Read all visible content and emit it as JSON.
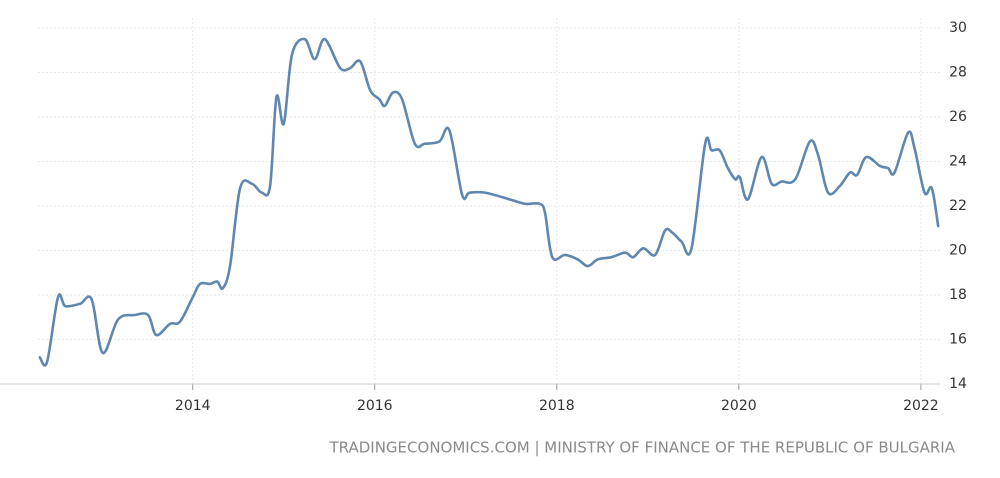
{
  "chart_data": {
    "type": "line",
    "source": "TRADINGECONOMICS.COM | MINISTRY OF FINANCE OF THE REPUBLIC OF BULGARIA",
    "x": [
      2012.32,
      2012.4,
      2012.52,
      2012.6,
      2012.76,
      2012.89,
      2013.01,
      2013.18,
      2013.36,
      2013.51,
      2013.6,
      2013.75,
      2013.86,
      2014.0,
      2014.08,
      2014.19,
      2014.27,
      2014.33,
      2014.41,
      2014.52,
      2014.65,
      2014.76,
      2014.85,
      2014.92,
      2015.0,
      2015.09,
      2015.23,
      2015.34,
      2015.45,
      2015.62,
      2015.73,
      2015.84,
      2015.95,
      2016.05,
      2016.11,
      2016.2,
      2016.3,
      2016.44,
      2016.55,
      2016.71,
      2016.82,
      2016.96,
      2017.04,
      2017.21,
      2017.48,
      2017.65,
      2017.81,
      2017.87,
      2017.95,
      2018.09,
      2018.23,
      2018.34,
      2018.45,
      2018.6,
      2018.75,
      2018.84,
      2018.95,
      2019.08,
      2019.19,
      2019.27,
      2019.37,
      2019.48,
      2019.63,
      2019.7,
      2019.79,
      2019.88,
      2019.96,
      2020.01,
      2020.1,
      2020.25,
      2020.36,
      2020.47,
      2020.62,
      2020.78,
      2020.87,
      2020.98,
      2021.11,
      2021.22,
      2021.3,
      2021.4,
      2021.55,
      2021.64,
      2021.71,
      2021.86,
      2021.93,
      2022.04,
      2022.12,
      2022.19
    ],
    "series": [
      {
        "color": "#5f87b0",
        "values": [
          15.2,
          15.0,
          17.9,
          17.5,
          17.6,
          17.8,
          15.4,
          16.9,
          17.1,
          17.1,
          16.2,
          16.7,
          16.8,
          17.9,
          18.5,
          18.5,
          18.6,
          18.3,
          19.3,
          22.8,
          23.0,
          22.6,
          22.9,
          26.9,
          25.7,
          28.8,
          29.5,
          28.6,
          29.5,
          28.2,
          28.2,
          28.5,
          27.2,
          26.8,
          26.5,
          27.1,
          26.8,
          24.8,
          24.8,
          24.9,
          25.4,
          22.5,
          22.6,
          22.6,
          22.3,
          22.1,
          22.1,
          21.7,
          19.7,
          19.8,
          19.6,
          19.3,
          19.6,
          19.7,
          19.9,
          19.7,
          20.1,
          19.8,
          20.9,
          20.8,
          20.4,
          20.1,
          24.8,
          24.5,
          24.5,
          23.7,
          23.2,
          23.3,
          22.3,
          24.2,
          23.0,
          23.1,
          23.2,
          24.9,
          24.3,
          22.6,
          22.9,
          23.5,
          23.4,
          24.2,
          23.8,
          23.7,
          23.5,
          25.3,
          24.6,
          22.6,
          22.8,
          21.1
        ]
      }
    ],
    "xlim": [
      2012.3,
      2022.21
    ],
    "xticks": [
      2014,
      2016,
      2018,
      2020,
      2022
    ],
    "ylim": [
      14,
      30
    ],
    "yticks": [
      14,
      16,
      18,
      20,
      22,
      24,
      26,
      28,
      30
    ],
    "grid": true
  }
}
